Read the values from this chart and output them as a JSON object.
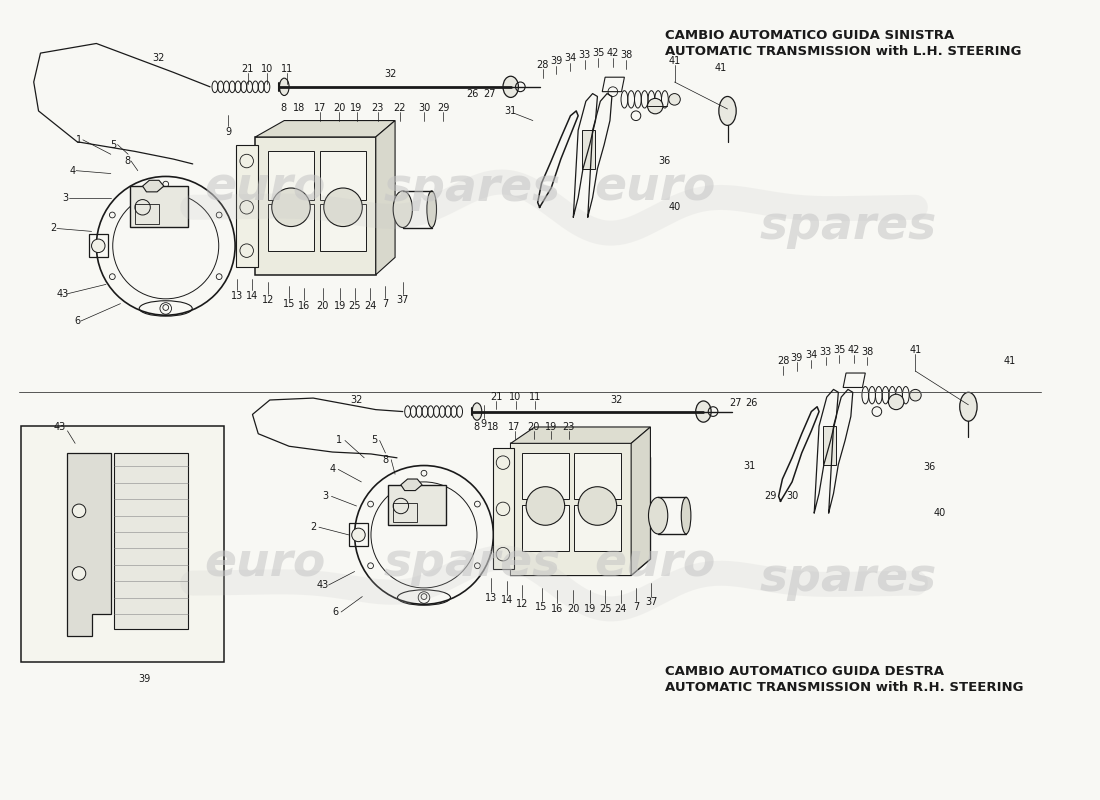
{
  "background_color": "#f8f8f4",
  "title_top_right_line1": "CAMBIO AUTOMATICO GUIDA SINISTRA",
  "title_top_right_line2": "AUTOMATIC TRANSMISSION with L.H. STEERING",
  "title_bottom_right_line1": "CAMBIO AUTOMATICO GUIDA DESTRA",
  "title_bottom_right_line2": "AUTOMATIC TRANSMISSION with R.H. STEERING",
  "fig_width": 11.0,
  "fig_height": 8.0,
  "dpi": 100,
  "line_color": "#1a1a1a",
  "text_color": "#1a1a1a",
  "title_fontsize": 9.5,
  "label_fontsize": 7.0,
  "watermark_color": "#c5c5c5"
}
